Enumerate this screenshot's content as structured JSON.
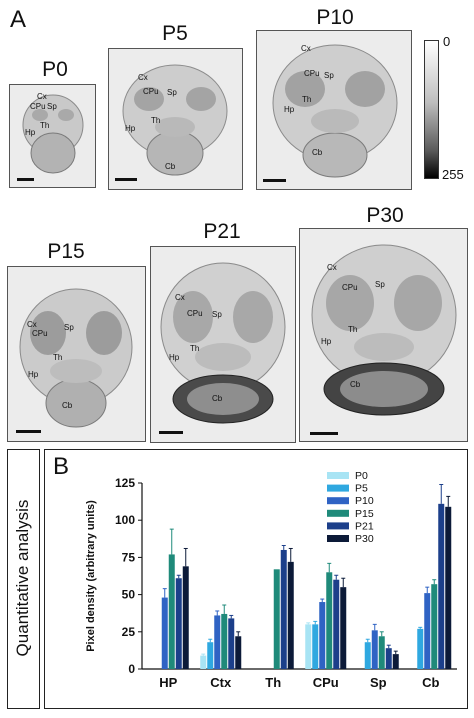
{
  "panel_a": {
    "letter": "A",
    "colorbar": {
      "top_label": "0",
      "bottom_label": "255"
    },
    "sections": [
      {
        "age": "P0",
        "regions": [
          "Cx",
          "CPu",
          "Sp",
          "Th",
          "Hp"
        ]
      },
      {
        "age": "P5",
        "regions": [
          "Cx",
          "CPu",
          "Sp",
          "Hp",
          "Th",
          "Cb"
        ]
      },
      {
        "age": "P10",
        "regions": [
          "Cx",
          "CPu",
          "Sp",
          "Th",
          "Hp",
          "Cb"
        ]
      },
      {
        "age": "P15",
        "regions": [
          "Cx",
          "CPu",
          "Sp",
          "Th",
          "Hp",
          "Cb"
        ]
      },
      {
        "age": "P21",
        "regions": [
          "Cx",
          "CPu",
          "Sp",
          "Hp",
          "Th",
          "Cb"
        ]
      },
      {
        "age": "P30",
        "regions": [
          "Cx",
          "CPu",
          "Sp",
          "Th",
          "Hp",
          "Cb"
        ]
      }
    ]
  },
  "panel_b": {
    "letter": "B",
    "side_label": "Quantitative analysis"
  },
  "colors": {
    "P0": "#a8e4f4",
    "P5": "#2fa8e0",
    "P10": "#2f63c4",
    "P15": "#1f8a7a",
    "P21": "#1c3f8a",
    "P30": "#0c1a38"
  },
  "chart_data": {
    "type": "bar",
    "categories": [
      "HP",
      "Ctx",
      "Th",
      "CPu",
      "Sp",
      "Cb"
    ],
    "ylabel": "Pixel density (arbitrary units)",
    "xlabel": "",
    "ylim": [
      0,
      125
    ],
    "yticks": [
      0,
      25,
      50,
      75,
      100,
      125
    ],
    "legend_position": "top-right",
    "series": [
      {
        "name": "P0",
        "values": [
          null,
          9,
          null,
          30,
          null,
          null
        ],
        "errors": [
          null,
          1,
          null,
          1,
          null,
          null
        ]
      },
      {
        "name": "P5",
        "values": [
          null,
          18,
          null,
          30,
          18,
          27
        ],
        "errors": [
          null,
          2,
          null,
          2,
          2,
          1
        ]
      },
      {
        "name": "P10",
        "values": [
          48,
          36,
          null,
          45,
          26,
          51
        ],
        "errors": [
          6,
          3,
          null,
          2,
          4,
          4
        ]
      },
      {
        "name": "P15",
        "values": [
          77,
          37,
          67,
          65,
          22,
          57
        ],
        "errors": [
          17,
          6,
          null,
          6,
          3,
          3
        ]
      },
      {
        "name": "P21",
        "values": [
          61,
          34,
          80,
          60,
          14,
          111
        ],
        "errors": [
          2,
          2,
          3,
          3,
          2,
          13
        ]
      },
      {
        "name": "P30",
        "values": [
          69,
          22,
          72,
          55,
          10,
          109
        ],
        "errors": [
          12,
          3,
          9,
          6,
          2,
          7
        ]
      }
    ]
  }
}
